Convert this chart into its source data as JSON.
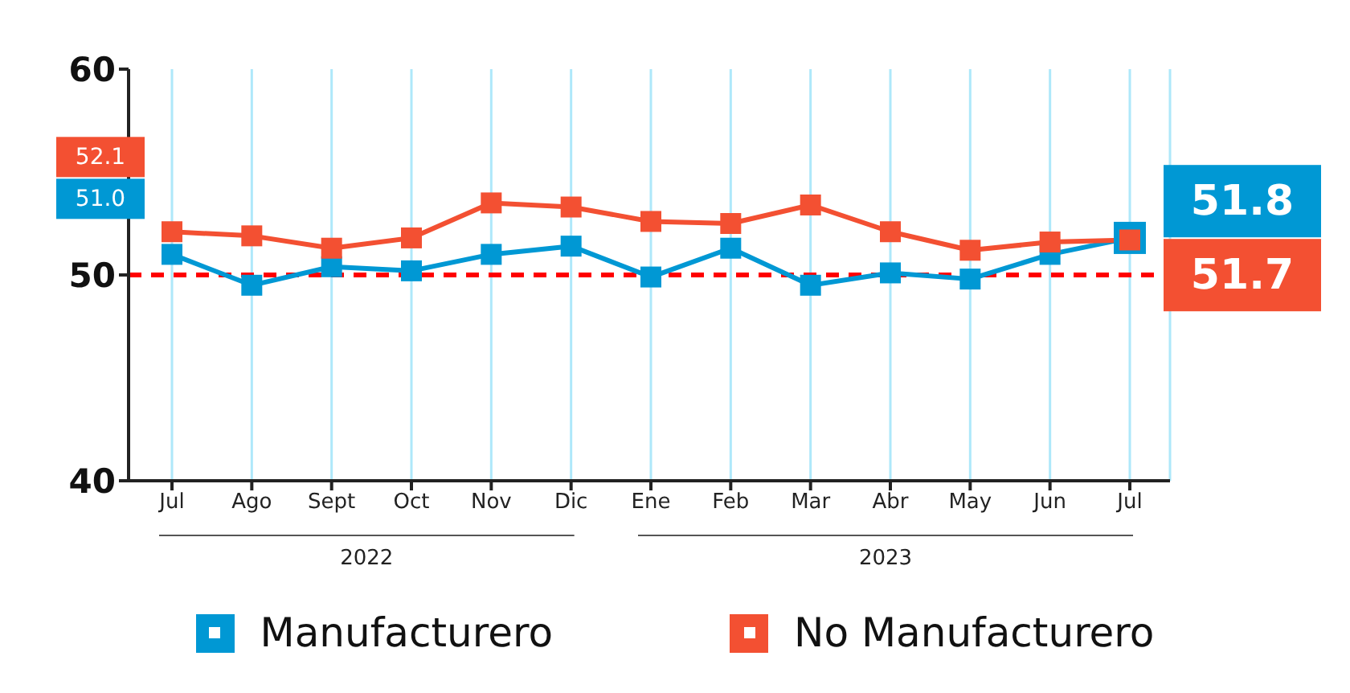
{
  "chart_data": {
    "type": "line",
    "categories": [
      "Jul",
      "Ago",
      "Sept",
      "Oct",
      "Nov",
      "Dic",
      "Ene",
      "Feb",
      "Mar",
      "Abr",
      "May",
      "Jun",
      "Jul"
    ],
    "series": [
      {
        "name": "Manufacturero",
        "color": "#0098d4",
        "values": [
          51.0,
          49.5,
          50.4,
          50.2,
          51.0,
          51.4,
          49.9,
          51.3,
          49.5,
          50.1,
          49.8,
          51.0,
          51.8
        ],
        "value_labels": [
          "51.0",
          null,
          null,
          null,
          null,
          null,
          null,
          null,
          null,
          null,
          null,
          null,
          "51.8"
        ]
      },
      {
        "name": "No Manufacturero",
        "color": "#f35032",
        "values": [
          52.1,
          51.9,
          51.3,
          51.8,
          53.5,
          53.3,
          52.6,
          52.5,
          53.4,
          52.1,
          51.2,
          51.6,
          51.7
        ],
        "value_labels": [
          "52.1",
          null,
          null,
          null,
          null,
          null,
          null,
          null,
          null,
          null,
          null,
          null,
          "51.7"
        ]
      }
    ],
    "ylim": [
      40,
      60
    ],
    "yticks": [
      40,
      50,
      60
    ],
    "ref_lines": [
      {
        "axis": "y",
        "value": 50,
        "color": "#ff0000",
        "line_style": "dashed"
      }
    ],
    "annotations": [
      "2022",
      "2023"
    ],
    "grid": "x",
    "legend": "bottom",
    "marker": "square",
    "line_style": "solid"
  }
}
